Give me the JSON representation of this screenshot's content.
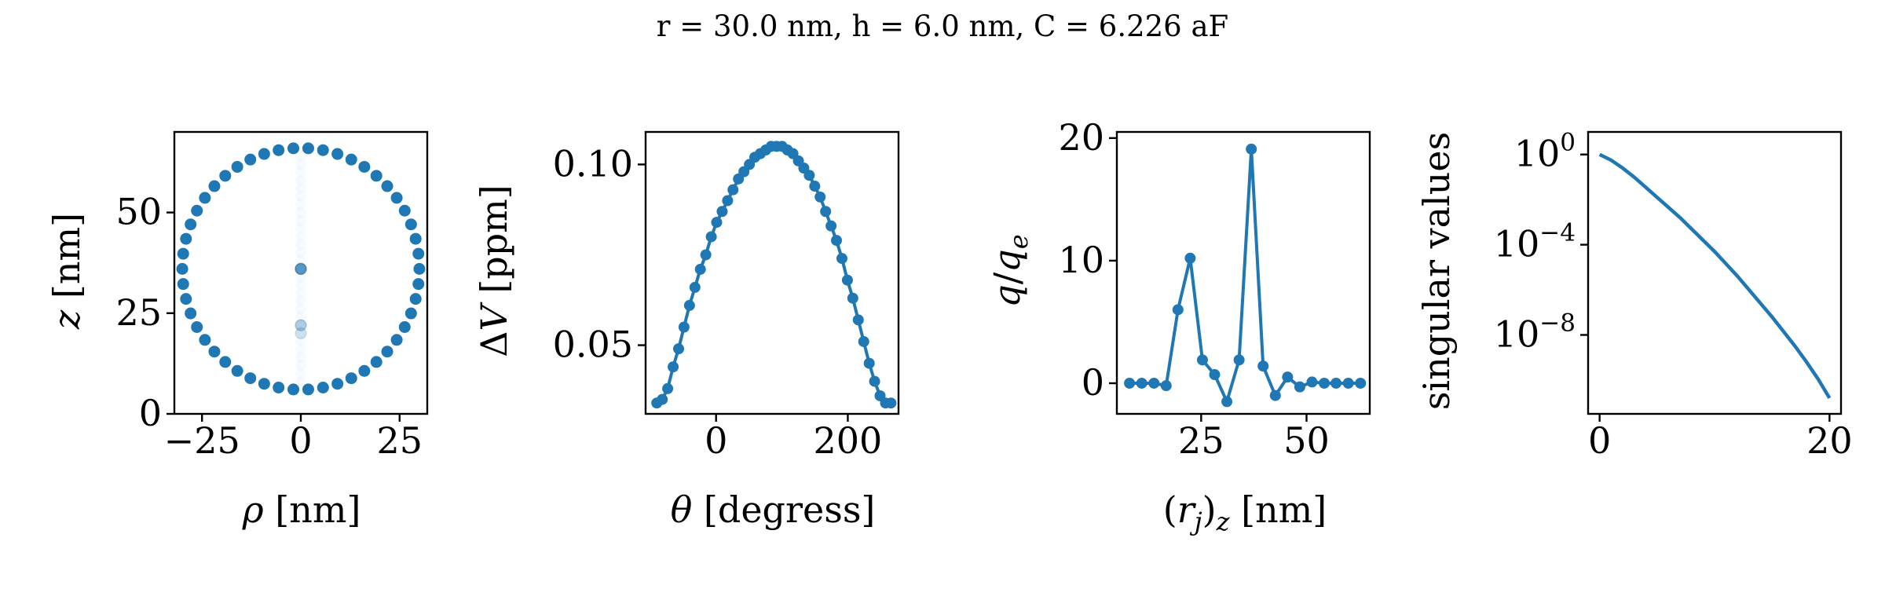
{
  "suptitle": "r = 30.0 nm, h = 6.0 nm, C = 6.226 aF",
  "colors": {
    "series": "#1f77b4",
    "axis": "#000000"
  },
  "chart_data": [
    {
      "type": "scatter",
      "xlabel": "ρ [nm]",
      "ylabel": "z [nm]",
      "xlim": [
        -32,
        32
      ],
      "ylim": [
        0,
        70
      ],
      "xticks": [
        -25,
        0,
        25
      ],
      "yticks": [
        0,
        25,
        50
      ],
      "circle": {
        "center": [
          0,
          36
        ],
        "radius": 30,
        "points": 50
      },
      "faint_points": [
        {
          "x": 0,
          "y": 36,
          "opacity": 0.75
        },
        {
          "x": 0,
          "y": 22,
          "opacity": 0.35
        },
        {
          "x": 0,
          "y": 20,
          "opacity": 0.2
        }
      ]
    },
    {
      "type": "line",
      "xlabel": "θ [degress]",
      "ylabel": "ΔV [ppm]",
      "xlim": [
        -107,
        277
      ],
      "ylim": [
        0.031,
        0.109
      ],
      "xticks": [
        0,
        200
      ],
      "yticks": [
        0.05,
        0.1
      ],
      "ytick_labels": [
        "0.05",
        "0.10"
      ],
      "x": [
        -90,
        -81.7,
        -73.5,
        -65.2,
        -56.9,
        -48.7,
        -40.4,
        -32.1,
        -23.9,
        -15.6,
        -7.3,
        0.9,
        9.2,
        17.5,
        25.7,
        34.0,
        42.3,
        50.6,
        58.8,
        67.1,
        75.4,
        83.6,
        91.9,
        100.2,
        108.4,
        116.7,
        125.0,
        133.2,
        141.5,
        149.8,
        158.0,
        166.3,
        174.6,
        182.8,
        191.1,
        199.4,
        207.6,
        215.9,
        224.2,
        232.5,
        240.7,
        249.0,
        257.3,
        265.5
      ],
      "values": [
        0.034,
        0.035,
        0.038,
        0.044,
        0.049,
        0.055,
        0.061,
        0.066,
        0.071,
        0.075,
        0.08,
        0.084,
        0.087,
        0.09,
        0.093,
        0.096,
        0.098,
        0.1,
        0.102,
        0.103,
        0.104,
        0.105,
        0.105,
        0.105,
        0.104,
        0.103,
        0.101,
        0.099,
        0.097,
        0.094,
        0.091,
        0.087,
        0.083,
        0.079,
        0.074,
        0.068,
        0.063,
        0.057,
        0.051,
        0.045,
        0.04,
        0.036,
        0.034,
        0.034
      ]
    },
    {
      "type": "line",
      "xlabel": "(r_j)_z [nm]",
      "ylabel": "q/q_e",
      "xlim": [
        5,
        65
      ],
      "ylim": [
        -2.5,
        20.5
      ],
      "xticks": [
        25,
        50
      ],
      "yticks": [
        0,
        10,
        20
      ],
      "x": [
        8,
        10.9,
        13.8,
        16.7,
        19.5,
        22.4,
        25.3,
        28.2,
        31.1,
        34.0,
        36.9,
        39.7,
        42.6,
        45.5,
        48.4,
        51.3,
        54.2,
        57.0,
        59.9,
        62.8
      ],
      "values": [
        0.0,
        0.0,
        0.0,
        -0.2,
        6.0,
        10.2,
        1.9,
        0.7,
        -1.5,
        1.9,
        19.1,
        1.4,
        -1.0,
        0.5,
        -0.3,
        0.1,
        0.0,
        0.0,
        0.0,
        0.0
      ]
    },
    {
      "type": "line",
      "xlabel": "",
      "ylabel": "singular values",
      "yscale": "log",
      "xlim": [
        -1,
        21
      ],
      "ylim_exp": [
        -11.5,
        1.0
      ],
      "xticks": [
        0,
        20
      ],
      "yticks_exp": [
        0,
        -4,
        -8
      ],
      "ytick_base": "10",
      "ytick_exponents": [
        "0",
        "−4",
        "−8"
      ],
      "x": [
        0,
        1,
        2,
        3,
        4,
        5,
        6,
        7,
        8,
        9,
        10,
        11,
        12,
        13,
        14,
        15,
        16,
        17,
        18,
        19,
        20
      ],
      "log10_values": [
        0.0,
        -0.25,
        -0.6,
        -1.0,
        -1.45,
        -1.9,
        -2.35,
        -2.8,
        -3.3,
        -3.8,
        -4.3,
        -4.85,
        -5.4,
        -6.0,
        -6.6,
        -7.2,
        -7.85,
        -8.5,
        -9.2,
        -9.95,
        -10.8
      ]
    }
  ]
}
